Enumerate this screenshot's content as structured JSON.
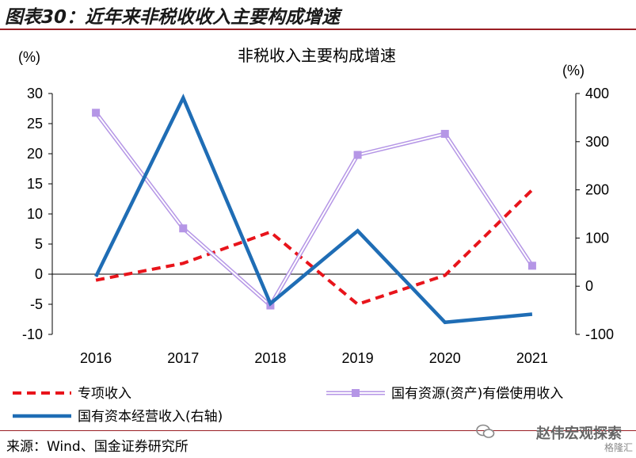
{
  "figure_title": "图表30：近年来非税收收入主要构成增速",
  "source": "来源：Wind、国金证券研究所",
  "watermark": "赵伟宏观探索",
  "watermark_sub": "格隆汇",
  "chart_data": {
    "type": "line",
    "title": "非税收入主要构成增速",
    "left_unit": "(%)",
    "right_unit": "(%)",
    "categories": [
      "2016",
      "2017",
      "2018",
      "2019",
      "2020",
      "2021"
    ],
    "y_left": {
      "lim": [
        -10,
        30
      ],
      "ticks": [
        -10,
        -5,
        0,
        5,
        10,
        15,
        20,
        25,
        30
      ]
    },
    "y_right": {
      "lim": [
        -100,
        400
      ],
      "ticks": [
        -100,
        0,
        100,
        200,
        300,
        400
      ]
    },
    "series": [
      {
        "name": "专项收入",
        "axis": "left",
        "color": "#e8141b",
        "style": "dashed",
        "values": [
          -1.0,
          1.8,
          7.0,
          -5.0,
          -0.2,
          14.0
        ]
      },
      {
        "name": "国有资源(资产)有偿使用收入",
        "axis": "left",
        "color": "#b596e6",
        "style": "double-square",
        "values": [
          26.8,
          7.6,
          -5.2,
          19.8,
          23.3,
          1.4
        ]
      },
      {
        "name": "国有资本经营收入(右轴)",
        "axis": "right",
        "color": "#1f6db5",
        "style": "solid",
        "values": [
          20,
          391,
          -36,
          115,
          -75,
          -58
        ]
      }
    ],
    "legend_position": "bottom",
    "grid": false
  }
}
